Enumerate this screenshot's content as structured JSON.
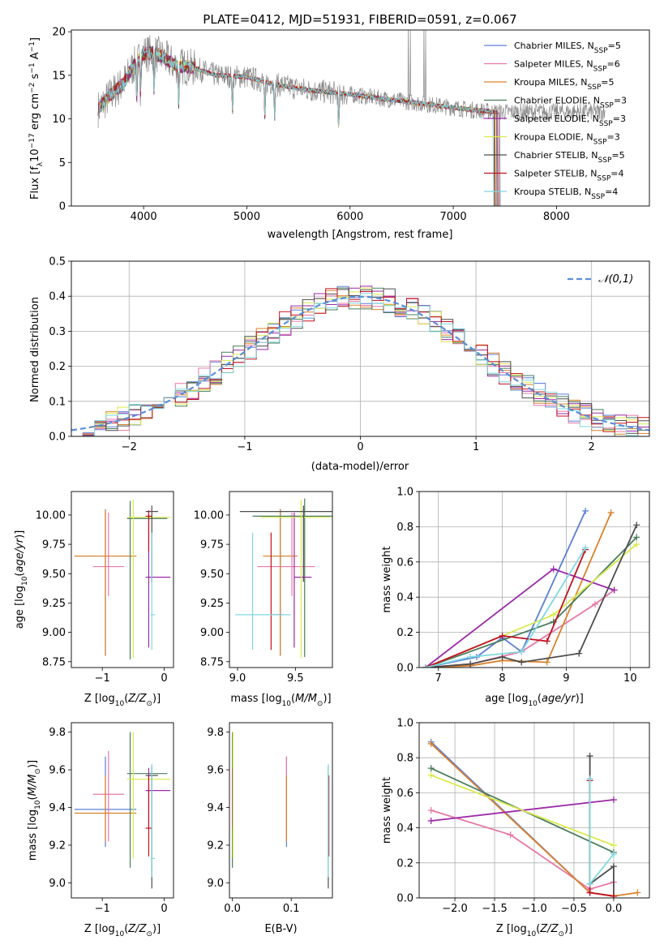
{
  "figure_title": "PLATE=0412, MJD=51931, FIBERID=0591, z=0.067",
  "models": [
    {
      "name": "Chabrier MILES",
      "nssp": "5",
      "color": "#5b7fd6"
    },
    {
      "name": "Salpeter MILES",
      "nssp": "6",
      "color": "#e678a6"
    },
    {
      "name": "Kroupa MILES",
      "nssp": "5",
      "color": "#d9822b"
    },
    {
      "name": "Chabrier ELODIE",
      "nssp": "3",
      "color": "#4a7d5e"
    },
    {
      "name": "Salpeter ELODIE",
      "nssp": "3",
      "color": "#9b2aa8"
    },
    {
      "name": "Kroupa ELODIE",
      "nssp": "3",
      "color": "#d9ea4a"
    },
    {
      "name": "Chabrier STELIB",
      "nssp": "5",
      "color": "#4d4d4d"
    },
    {
      "name": "Salpeter STELIB",
      "nssp": "4",
      "color": "#c1121f"
    },
    {
      "name": "Kroupa STELIB",
      "nssp": "4",
      "color": "#7fd8e0"
    }
  ],
  "chart_data": [
    {
      "id": "spectrum",
      "type": "line",
      "title": "PLATE=0412, MJD=51931, FIBERID=0591, z=0.067",
      "xlabel": "wavelength [Angstrom, rest frame]",
      "ylabel": "Flux [f_λ 10^-17 erg cm^-2 s^-1 A^-1]",
      "xlim": [
        3300,
        8900
      ],
      "ylim": [
        0,
        20.2
      ],
      "xticks": [
        4000,
        5000,
        6000,
        7000,
        8000
      ],
      "yticks": [
        0,
        5,
        10,
        15,
        20
      ],
      "grid": false,
      "legend": "top-right",
      "data_color": "#8c8c8c",
      "continuum": {
        "x": [
          3550,
          3700,
          3800,
          3900,
          4000,
          4100,
          4200,
          4300,
          4500,
          4700,
          5000,
          5300,
          5600,
          6000,
          6400,
          6800,
          7200,
          7400
        ],
        "y": [
          11.0,
          13.0,
          14.0,
          16.0,
          17.5,
          17.6,
          17.0,
          16.2,
          15.8,
          15.0,
          14.8,
          13.9,
          13.3,
          12.8,
          12.2,
          11.6,
          11.0,
          10.8
        ]
      },
      "model_end_wavelength": 7450,
      "absorption_lines": [
        3934,
        3969,
        4101,
        4340,
        4861,
        5175,
        5270,
        5890
      ],
      "emission_lines": [
        6563,
        6584,
        6717,
        6731
      ]
    },
    {
      "id": "residuals",
      "type": "line",
      "xlabel": "(data-model)/error",
      "ylabel": "Normed distribution",
      "xlim": [
        -2.5,
        2.5
      ],
      "ylim": [
        0,
        0.5
      ],
      "xticks": [
        -2,
        -1,
        0,
        1,
        2
      ],
      "yticks": [
        0.0,
        0.1,
        0.2,
        0.3,
        0.4,
        0.5
      ],
      "grid": true,
      "legend": "top-right",
      "series": [
        {
          "name": "𝒩(0,1)",
          "function": "gaussian",
          "mean": 0,
          "sigma": 1,
          "color": "#5b8ed6",
          "style": "dashed"
        }
      ],
      "hist_bin_width": 0.1
    },
    {
      "id": "age_vs_Z",
      "type": "scatter",
      "xlabel": "Z [log10(Z/Z⊙)]",
      "ylabel": "age  [log10(age/yr)]",
      "xlim": [
        -1.5,
        0.15
      ],
      "ylim": [
        8.7,
        10.2
      ],
      "xticks": [
        -1,
        0
      ],
      "yticks": [
        8.75,
        9.0,
        9.25,
        9.5,
        9.75,
        10.0
      ],
      "points": [
        {
          "model": "Chabrier MILES",
          "x": -0.95,
          "y": 9.65,
          "xerr": [
            0.5,
            0.5
          ],
          "yerr": [
            0.85,
            0.4
          ]
        },
        {
          "model": "Salpeter MILES",
          "x": -0.9,
          "y": 9.56,
          "xerr": [
            0.25,
            0.25
          ],
          "yerr": [
            0.25,
            0.46
          ]
        },
        {
          "model": "Kroupa MILES",
          "x": -0.95,
          "y": 9.65,
          "xerr": [
            0.5,
            0.5
          ],
          "yerr": [
            0.85,
            0.4
          ]
        },
        {
          "model": "Chabrier ELODIE",
          "x": -0.55,
          "y": 9.97,
          "xerr": [
            0.05,
            0.6
          ],
          "yerr": [
            1.2,
            0.15
          ]
        },
        {
          "model": "Salpeter ELODIE",
          "x": -0.25,
          "y": 9.47,
          "xerr": [
            0.05,
            0.35
          ],
          "yerr": [
            0.6,
            0.55
          ]
        },
        {
          "model": "Kroupa ELODIE",
          "x": -0.5,
          "y": 9.98,
          "xerr": [
            0.1,
            0.6
          ],
          "yerr": [
            1.2,
            0.15
          ]
        },
        {
          "model": "Chabrier STELIB",
          "x": -0.2,
          "y": 10.03,
          "xerr": [
            0.1,
            0.1
          ],
          "yerr": [
            0.6,
            0.05
          ]
        },
        {
          "model": "Salpeter STELIB",
          "x": -0.25,
          "y": 9.99,
          "xerr": [
            0.05,
            0.05
          ],
          "yerr": [
            0.3,
            0.05
          ]
        },
        {
          "model": "Kroupa STELIB",
          "x": -0.2,
          "y": 9.15,
          "xerr": [
            0.02,
            0.05
          ],
          "yerr": [
            0.3,
            0.7
          ]
        }
      ]
    },
    {
      "id": "age_vs_mass",
      "type": "scatter",
      "xlabel": "mass [log10(M/M⊙)]",
      "ylabel": "",
      "xlim": [
        8.93,
        9.82
      ],
      "ylim": [
        8.7,
        10.2
      ],
      "xticks": [
        9.0,
        9.5
      ],
      "yticks": [
        8.75,
        9.0,
        9.25,
        9.5,
        9.75,
        10.0
      ],
      "points": [
        {
          "model": "Chabrier MILES",
          "x": 9.37,
          "y": 9.65,
          "xerr": [
            0.06,
            0.06
          ],
          "yerr": [
            0.85,
            0.4
          ]
        },
        {
          "model": "Salpeter MILES",
          "x": 9.47,
          "y": 9.56,
          "xerr": [
            0.3,
            0.2
          ],
          "yerr": [
            0.25,
            0.46
          ]
        },
        {
          "model": "Kroupa MILES",
          "x": 9.37,
          "y": 9.65,
          "xerr": [
            0.15,
            0.15
          ],
          "yerr": [
            0.85,
            0.4
          ]
        },
        {
          "model": "Chabrier ELODIE",
          "x": 9.58,
          "y": 9.99,
          "xerr": [
            0.45,
            0.25
          ],
          "yerr": [
            1.2,
            0.15
          ]
        },
        {
          "model": "Salpeter ELODIE",
          "x": 9.49,
          "y": 9.47,
          "xerr": [
            0.0,
            0.15
          ],
          "yerr": [
            0.6,
            0.55
          ]
        },
        {
          "model": "Kroupa ELODIE",
          "x": 9.55,
          "y": 9.98,
          "xerr": [
            0.35,
            0.25
          ],
          "yerr": [
            1.2,
            0.15
          ]
        },
        {
          "model": "Chabrier STELIB",
          "x": 9.57,
          "y": 10.03,
          "xerr": [
            0.55,
            0.25
          ],
          "yerr": [
            0.6,
            0.05
          ]
        },
        {
          "model": "Salpeter STELIB",
          "x": 9.29,
          "y": 9.15,
          "xerr": [
            0.0,
            0.1
          ],
          "yerr": [
            0.3,
            0.7
          ]
        },
        {
          "model": "Kroupa STELIB",
          "x": 9.13,
          "y": 9.15,
          "xerr": [
            0.15,
            0.33
          ],
          "yerr": [
            0.3,
            0.7
          ]
        }
      ]
    },
    {
      "id": "weight_vs_age",
      "type": "line",
      "xlabel": "age  [log10(age/yr)]",
      "ylabel": "mass weight",
      "xlim": [
        6.7,
        10.3
      ],
      "ylim": [
        0,
        1.0
      ],
      "xticks": [
        7,
        8,
        9,
        10
      ],
      "yticks": [
        0.0,
        0.2,
        0.4,
        0.6,
        0.8,
        1.0
      ],
      "grid": true,
      "series": [
        {
          "model": "Chabrier MILES",
          "x": [
            6.8,
            7.6,
            8.0,
            8.3,
            9.3
          ],
          "y": [
            0.0,
            0.06,
            0.17,
            0.09,
            0.89
          ]
        },
        {
          "model": "Salpeter MILES",
          "x": [
            6.8,
            7.5,
            8.3,
            9.45,
            9.75
          ],
          "y": [
            0.0,
            0.02,
            0.09,
            0.36,
            0.44
          ]
        },
        {
          "model": "Kroupa MILES",
          "x": [
            6.8,
            7.5,
            8.0,
            8.7,
            9.7
          ],
          "y": [
            0.0,
            0.01,
            0.04,
            0.03,
            0.88
          ]
        },
        {
          "model": "Chabrier ELODIE",
          "x": [
            6.8,
            8.8,
            10.1
          ],
          "y": [
            0.0,
            0.26,
            0.74
          ]
        },
        {
          "model": "Salpeter ELODIE",
          "x": [
            6.8,
            8.8,
            9.75
          ],
          "y": [
            0.0,
            0.56,
            0.44
          ]
        },
        {
          "model": "Kroupa ELODIE",
          "x": [
            6.8,
            8.8,
            10.1
          ],
          "y": [
            0.0,
            0.3,
            0.7
          ]
        },
        {
          "model": "Chabrier STELIB",
          "x": [
            6.8,
            7.5,
            8.0,
            8.3,
            9.2,
            10.1
          ],
          "y": [
            0.0,
            0.02,
            0.06,
            0.03,
            0.08,
            0.81
          ]
        },
        {
          "model": "Salpeter STELIB",
          "x": [
            6.8,
            8.0,
            8.7,
            9.3
          ],
          "y": [
            0.0,
            0.18,
            0.15,
            0.67
          ]
        },
        {
          "model": "Kroupa STELIB",
          "x": [
            6.8,
            7.5,
            8.3,
            9.3
          ],
          "y": [
            0.0,
            0.06,
            0.09,
            0.68
          ]
        }
      ]
    },
    {
      "id": "mass_vs_Z",
      "type": "scatter",
      "xlabel": "Z [log10(Z/Z⊙)]",
      "ylabel": "mass [log10(M/M⊙)]",
      "xlim": [
        -1.5,
        0.15
      ],
      "ylim": [
        8.92,
        9.85
      ],
      "xticks": [
        -1,
        0
      ],
      "yticks": [
        9.0,
        9.2,
        9.4,
        9.6,
        9.8
      ],
      "points": [
        {
          "model": "Chabrier MILES",
          "x": -0.95,
          "y": 9.39,
          "xerr": [
            0.5,
            0.5
          ],
          "yerr": [
            0.2,
            0.28
          ]
        },
        {
          "model": "Salpeter MILES",
          "x": -0.9,
          "y": 9.47,
          "xerr": [
            0.25,
            0.25
          ],
          "yerr": [
            0.25,
            0.23
          ]
        },
        {
          "model": "Kroupa MILES",
          "x": -0.95,
          "y": 9.37,
          "xerr": [
            0.5,
            0.5
          ],
          "yerr": [
            0.15,
            0.2
          ]
        },
        {
          "model": "Chabrier ELODIE",
          "x": -0.55,
          "y": 9.58,
          "xerr": [
            0.05,
            0.6
          ],
          "yerr": [
            0.5,
            0.22
          ]
        },
        {
          "model": "Salpeter ELODIE",
          "x": -0.25,
          "y": 9.49,
          "xerr": [
            0.05,
            0.35
          ],
          "yerr": [
            0.2,
            0.12
          ]
        },
        {
          "model": "Kroupa ELODIE",
          "x": -0.5,
          "y": 9.55,
          "xerr": [
            0.1,
            0.6
          ],
          "yerr": [
            0.42,
            0.25
          ]
        },
        {
          "model": "Chabrier STELIB",
          "x": -0.2,
          "y": 9.57,
          "xerr": [
            0.1,
            0.1
          ],
          "yerr": [
            0.6,
            0.05
          ]
        },
        {
          "model": "Salpeter STELIB",
          "x": -0.25,
          "y": 9.29,
          "xerr": [
            0.05,
            0.05
          ],
          "yerr": [
            0.15,
            0.28
          ]
        },
        {
          "model": "Kroupa STELIB",
          "x": -0.2,
          "y": 9.13,
          "xerr": [
            0.02,
            0.05
          ],
          "yerr": [
            0.1,
            0.5
          ]
        }
      ]
    },
    {
      "id": "mass_vs_ebv",
      "type": "scatter",
      "xlabel": "E(B-V)",
      "ylabel": "",
      "xlim": [
        -0.005,
        0.17
      ],
      "ylim": [
        8.92,
        9.85
      ],
      "xticks": [
        0.0,
        0.1
      ],
      "yticks": [
        9.0,
        9.2,
        9.4,
        9.6,
        9.8
      ],
      "points": [
        {
          "model": "Chabrier MILES",
          "x": 0.092,
          "y": 9.39,
          "yerr": [
            0.2,
            0.28
          ]
        },
        {
          "model": "Salpeter MILES",
          "x": 0.092,
          "y": 9.47,
          "yerr": [
            0.25,
            0.2
          ]
        },
        {
          "model": "Kroupa MILES",
          "x": 0.092,
          "y": 9.37,
          "yerr": [
            0.15,
            0.2
          ]
        },
        {
          "model": "Chabrier ELODIE",
          "x": 0.0,
          "y": 9.58,
          "yerr": [
            0.5,
            0.22
          ]
        },
        {
          "model": "Salpeter ELODIE",
          "x": 0.0,
          "y": 9.49,
          "yerr": [
            0.2,
            0.12
          ]
        },
        {
          "model": "Kroupa ELODIE",
          "x": 0.001,
          "y": 9.55,
          "yerr": [
            0.42,
            0.25
          ]
        },
        {
          "model": "Chabrier STELIB",
          "x": 0.163,
          "y": 9.57,
          "yerr": [
            0.6,
            0.05
          ]
        },
        {
          "model": "Salpeter STELIB",
          "x": 0.164,
          "y": 9.29,
          "yerr": [
            0.15,
            0.28
          ]
        },
        {
          "model": "Kroupa STELIB",
          "x": 0.163,
          "y": 9.13,
          "yerr": [
            0.1,
            0.5
          ]
        }
      ]
    },
    {
      "id": "weight_vs_Z",
      "type": "line",
      "xlabel": "Z [log10(Z/Z⊙)]",
      "ylabel": "mass weight",
      "xlim": [
        -2.45,
        0.45
      ],
      "ylim": [
        0,
        1.0
      ],
      "xticks": [
        -2.0,
        -1.5,
        -1.0,
        -0.5,
        0.0
      ],
      "yticks": [
        0.0,
        0.2,
        0.4,
        0.6,
        0.8,
        1.0
      ],
      "grid": true,
      "series": [
        {
          "model": "Chabrier MILES",
          "x": [
            -2.3,
            -0.3,
            0.0
          ],
          "y": [
            0.89,
            0.03,
            0.01
          ]
        },
        {
          "model": "Salpeter MILES",
          "x": [
            -2.3,
            -1.3,
            -0.3,
            0.0
          ],
          "y": [
            0.5,
            0.36,
            0.05,
            0.09
          ]
        },
        {
          "model": "Kroupa MILES",
          "x": [
            -2.3,
            -0.3,
            0.0,
            0.3
          ],
          "y": [
            0.88,
            0.03,
            0.01,
            0.03
          ]
        },
        {
          "model": "Chabrier ELODIE",
          "x": [
            -2.3,
            0.0
          ],
          "y": [
            0.74,
            0.26
          ]
        },
        {
          "model": "Salpeter ELODIE",
          "x": [
            -2.3,
            0.0
          ],
          "y": [
            0.44,
            0.56
          ]
        },
        {
          "model": "Kroupa ELODIE",
          "x": [
            -2.3,
            0.0
          ],
          "y": [
            0.7,
            0.3
          ]
        },
        {
          "model": "Chabrier STELIB",
          "x": [
            -0.3,
            -0.3,
            0.0,
            0.0
          ],
          "y": [
            0.81,
            0.08,
            0.18,
            0.01
          ]
        },
        {
          "model": "Salpeter STELIB",
          "x": [
            -0.3,
            -0.3,
            0.0
          ],
          "y": [
            0.67,
            0.03,
            0.01
          ]
        },
        {
          "model": "Kroupa STELIB",
          "x": [
            -0.3,
            -0.3,
            0.0
          ],
          "y": [
            0.68,
            0.08,
            0.25
          ]
        }
      ]
    }
  ]
}
